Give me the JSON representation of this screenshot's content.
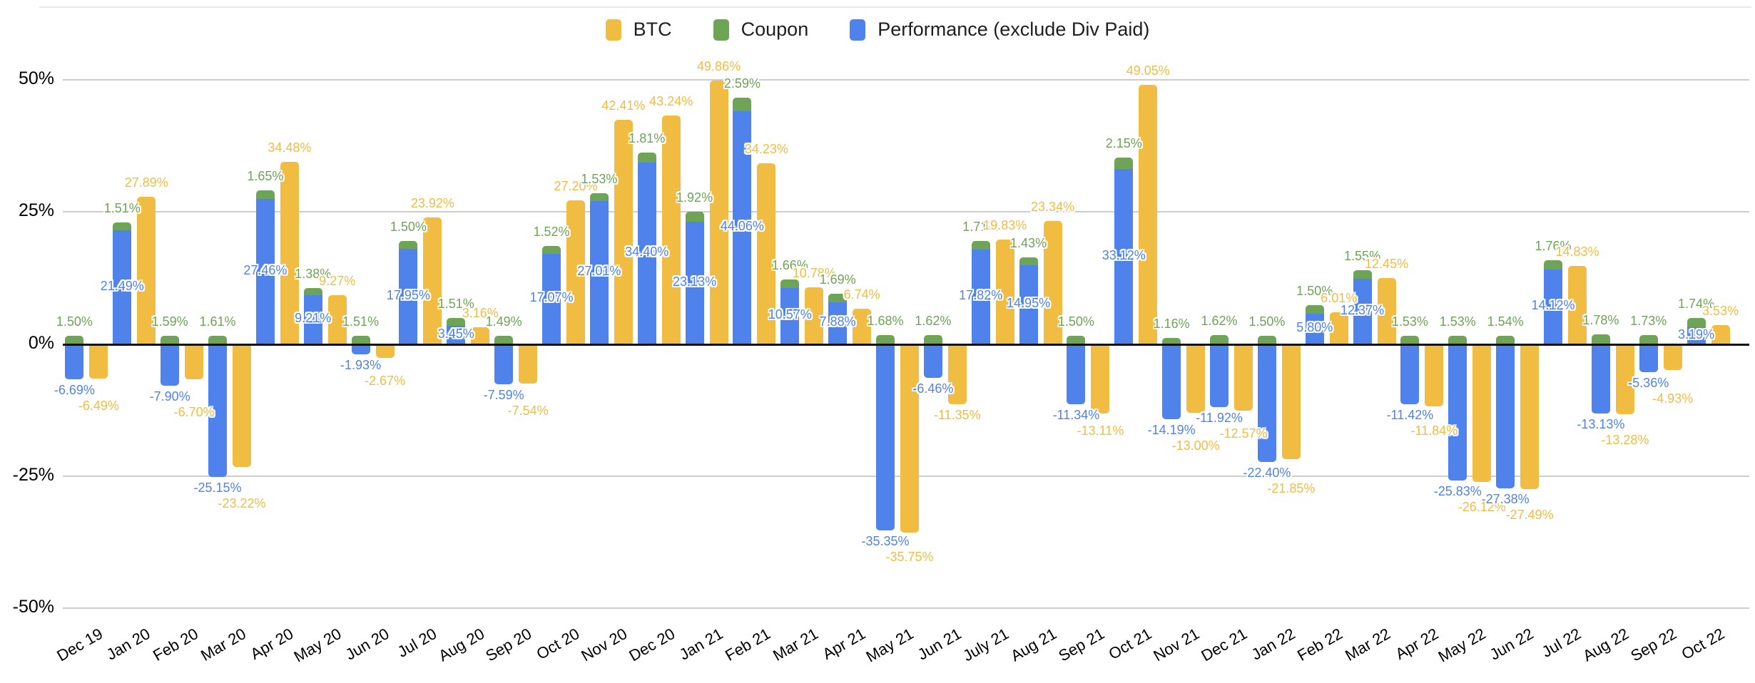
{
  "chart_data": {
    "type": "bar",
    "title": "",
    "xlabel": "",
    "ylabel": "",
    "legend_position": "top",
    "grid": true,
    "background": "#ffffff",
    "ylim": [
      -50,
      50
    ],
    "yticks": [
      50,
      25,
      0,
      -25,
      -50
    ],
    "ytick_suffix": "%",
    "label_decimals": 2,
    "label_suffix": "%",
    "stacked_series": [
      "Performance (exclude Div Paid)",
      "Coupon"
    ],
    "categories": [
      "Dec 19",
      "Jan 20",
      "Feb 20",
      "Mar 20",
      "Apr 20",
      "May 20",
      "Jun 20",
      "Jul 20",
      "Aug 20",
      "Sep 20",
      "Oct 20",
      "Nov 20",
      "Dec 20",
      "Jan 21",
      "Feb 21",
      "Mar 21",
      "Apr 21",
      "May 21",
      "Jun 21",
      "July 21",
      "Aug 21",
      "Sep 21",
      "Oct 21",
      "Nov 21",
      "Dec 21",
      "Jan 22",
      "Feb 22",
      "Mar 22",
      "Apr 22",
      "May 22",
      "Jun 22",
      "Jul 22",
      "Aug 22",
      "Sep 22",
      "Oct 22"
    ],
    "series": [
      {
        "name": "BTC",
        "color": "#F1BC42",
        "values": [
          -6.49,
          27.89,
          -6.7,
          -23.22,
          34.48,
          9.27,
          -2.67,
          23.92,
          3.16,
          -7.54,
          27.2,
          42.41,
          43.24,
          49.86,
          34.23,
          10.78,
          6.74,
          -35.75,
          -11.35,
          19.83,
          23.34,
          -13.11,
          49.05,
          -13.0,
          -12.57,
          -21.85,
          6.01,
          12.45,
          -11.84,
          -26.12,
          -27.49,
          14.83,
          -13.28,
          -4.93,
          3.53
        ]
      },
      {
        "name": "Coupon",
        "color": "#6DA456",
        "values": [
          1.5,
          1.51,
          1.59,
          1.61,
          1.65,
          1.38,
          1.51,
          1.5,
          1.51,
          1.49,
          1.52,
          1.53,
          1.81,
          1.92,
          2.59,
          1.66,
          1.69,
          1.68,
          1.62,
          1.71,
          1.43,
          1.5,
          2.15,
          1.16,
          1.62,
          1.5,
          1.5,
          1.55,
          1.53,
          1.53,
          1.54,
          1.76,
          1.78,
          1.73,
          1.74
        ]
      },
      {
        "name": "Performance (exclude Div Paid)",
        "color": "#5082EC",
        "values": [
          -6.69,
          21.49,
          -7.9,
          -25.15,
          27.46,
          9.21,
          -1.93,
          17.95,
          3.45,
          -7.59,
          17.07,
          27.01,
          34.4,
          23.13,
          44.06,
          10.57,
          7.88,
          -35.35,
          -6.46,
          17.82,
          14.95,
          -11.34,
          33.12,
          -14.19,
          -11.92,
          -22.4,
          5.8,
          12.37,
          -11.42,
          -25.83,
          -27.38,
          14.12,
          -13.13,
          -5.36,
          3.19
        ]
      }
    ]
  }
}
